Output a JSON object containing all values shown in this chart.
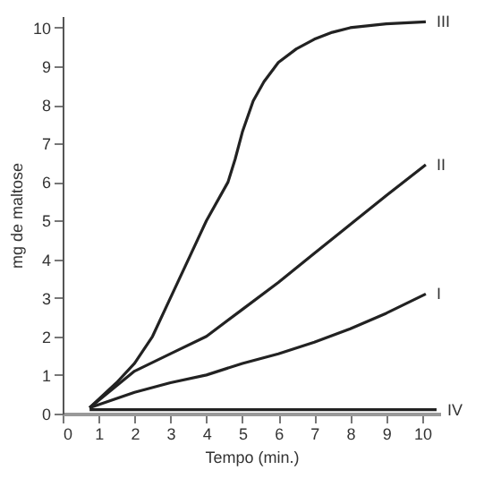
{
  "chart_data": {
    "type": "line",
    "xlabel": "Tempo (min.)",
    "ylabel": "mg de maltose",
    "xlim": [
      0,
      10.5
    ],
    "ylim": [
      0,
      10.3
    ],
    "xticks": [
      0,
      1,
      2,
      3,
      4,
      5,
      6,
      7,
      8,
      9,
      10
    ],
    "yticks": [
      0,
      1,
      2,
      3,
      4,
      5,
      6,
      7,
      8,
      9,
      10
    ],
    "grid": false,
    "legend": false,
    "marker": "none",
    "line_style": "solid",
    "series": [
      {
        "name": "I",
        "color": "#222222",
        "x": [
          0.75,
          2,
          3,
          4,
          5,
          6,
          7,
          8,
          9,
          10.1
        ],
        "values": [
          0.15,
          0.55,
          0.8,
          1.0,
          1.3,
          1.55,
          1.85,
          2.2,
          2.6,
          3.1
        ]
      },
      {
        "name": "II",
        "color": "#222222",
        "x": [
          0.75,
          2,
          3,
          4,
          5,
          6,
          7,
          8,
          9,
          10.1
        ],
        "values": [
          0.15,
          1.1,
          1.55,
          2.0,
          2.7,
          3.4,
          4.15,
          4.9,
          5.65,
          6.45
        ]
      },
      {
        "name": "III",
        "color": "#222222",
        "x": [
          0.75,
          1.5,
          2,
          2.5,
          3,
          3.5,
          4,
          4.6,
          4.8,
          5,
          5.3,
          5.6,
          6,
          6.5,
          7,
          7.5,
          8,
          9,
          10.1
        ],
        "values": [
          0.15,
          0.8,
          1.3,
          2.0,
          3.0,
          4.0,
          5.0,
          6.0,
          6.6,
          7.3,
          8.1,
          8.6,
          9.1,
          9.45,
          9.7,
          9.88,
          10.0,
          10.1,
          10.15
        ]
      },
      {
        "name": "IV",
        "color": "#222222",
        "x": [
          0.75,
          10.4
        ],
        "values": [
          0.1,
          0.1
        ]
      }
    ]
  }
}
